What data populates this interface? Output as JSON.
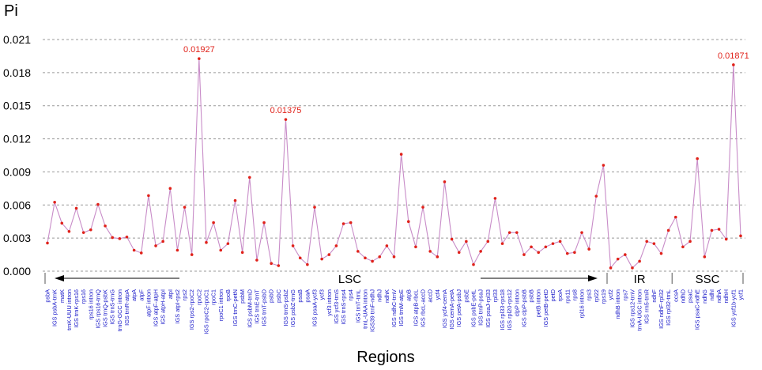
{
  "chart_data": {
    "type": "line",
    "title": "",
    "ylabel": "Pi",
    "xlabel": "Regions",
    "ylim": [
      0,
      0.021
    ],
    "yticks": [
      "0.000",
      "0.003",
      "0.006",
      "0.009",
      "0.012",
      "0.015",
      "0.018",
      "0.021"
    ],
    "grid": "horizontal-dashed",
    "line_color": "#c88cc8",
    "point_color": "#e0221a",
    "categories": [
      "psbA",
      "IGS psbA-trnK",
      "matK",
      "trnK-UUU intron",
      "IGS trnK-rps16",
      "rps16",
      "rps16 intron",
      "IGS rps16-trnQ",
      "IGS trnQ-psbK",
      "IGS trnS-trnG",
      "trnG-GCC intron",
      "IGS trnR-atpA",
      "atpA",
      "atpF",
      "atpF intron",
      "IGS atpF-atpH",
      "IGS atpH-atpI",
      "atpI",
      "IGS atpI-rps2",
      "rps2",
      "IGS rps2-rpoC2",
      "rpoC2",
      "IGS rpoC2-rpoC1",
      "rpoC1",
      "rpoC1 intron",
      "rpoB",
      "IGS trnC-petN",
      "psbM",
      "IGS psbM-trnD",
      "IGS trnE-trnT",
      "IGS trnT-psbD",
      "psbD",
      "psbC",
      "IGS trnS-psbZ",
      "IGS psbZ-trnG",
      "psaB",
      "psaA",
      "IGS psaA-ycf3",
      "ycf3",
      "ycf3 intron",
      "IGS ycf3-trnS",
      "IGS trnS-rps4",
      "rps4",
      "IGS trnT-trnL",
      "trnL-UAA intron",
      "IGS39 trnF-ndhJ",
      "ndhJ",
      "ndhK",
      "IGS ndhC-trnV",
      "IGS trnM-atpE",
      "atpB",
      "IGS atpB-rbcL",
      "IGS rbcL-accD",
      "accD",
      "ycf4",
      "IGS ycf4-cemA",
      "IGS cemA-petA",
      "IGS petA-psbJ",
      "psbE",
      "IGS psbE-petL",
      "IGS trnP-psaJ",
      "IGS psaJ-rpl33",
      "rpl33",
      "IGS rpl33-rps18",
      "IGS rpl20-rps12",
      "clpP intron",
      "IGS clpP-psbB",
      "psbB",
      "petB intron",
      "IGS petB-petD",
      "petD",
      "rpoA",
      "rps11",
      "rps8",
      "rpl16 intron",
      "rps3",
      "rpl22",
      "rps19",
      "ycf2",
      "ndhB intron",
      "rps7",
      "IGS rps12-trnV",
      "trnA-UGC intron",
      "IGS rrn5-trnR",
      "ndhF",
      "IGS ndhF-rpl32",
      "IGS rpl32-trnL",
      "ccsA",
      "ndhD",
      "psaC",
      "IGS psaC-ndhE",
      "ndhG",
      "ndhI",
      "ndhA",
      "ndhH",
      "IGS ycf1b-ycf1",
      "ycf1"
    ],
    "values": [
      0.00255,
      0.00625,
      0.00435,
      0.0036,
      0.0057,
      0.0035,
      0.00375,
      0.00605,
      0.0041,
      0.00305,
      0.00295,
      0.0031,
      0.0019,
      0.00165,
      0.00685,
      0.0023,
      0.0027,
      0.0075,
      0.0019,
      0.0058,
      0.0015,
      0.01927,
      0.0026,
      0.0044,
      0.0019,
      0.0025,
      0.0064,
      0.0017,
      0.0085,
      0.001,
      0.0044,
      0.0007,
      0.0005,
      0.01375,
      0.0023,
      0.0012,
      0.0006,
      0.0058,
      0.0011,
      0.0015,
      0.0023,
      0.0043,
      0.0044,
      0.0018,
      0.0012,
      0.0009,
      0.0013,
      0.0023,
      0.0013,
      0.0106,
      0.0045,
      0.0022,
      0.0058,
      0.0018,
      0.0013,
      0.0081,
      0.0029,
      0.0017,
      0.0027,
      0.0006,
      0.0018,
      0.0027,
      0.0066,
      0.0025,
      0.0035,
      0.0035,
      0.0015,
      0.0022,
      0.0017,
      0.0022,
      0.0025,
      0.0027,
      0.0016,
      0.0017,
      0.0035,
      0.002,
      0.0068,
      0.0096,
      0.0003,
      0.0011,
      0.0015,
      0.0003,
      0.0009,
      0.0027,
      0.0025,
      0.0016,
      0.0037,
      0.0049,
      0.0022,
      0.0027,
      0.0102,
      0.0013,
      0.0037,
      0.0038,
      0.0029,
      0.01871,
      0.0032
    ],
    "annotations": [
      {
        "index": 21,
        "label": "0.01927"
      },
      {
        "index": 33,
        "label": "0.01375"
      },
      {
        "index": 95,
        "label": "0.01871"
      }
    ],
    "regions": [
      {
        "label": "LSC",
        "start": 0,
        "end": 77
      },
      {
        "label": "IR",
        "start": 78,
        "end": 86
      },
      {
        "label": "SSC",
        "start": 87,
        "end": 96
      }
    ]
  }
}
